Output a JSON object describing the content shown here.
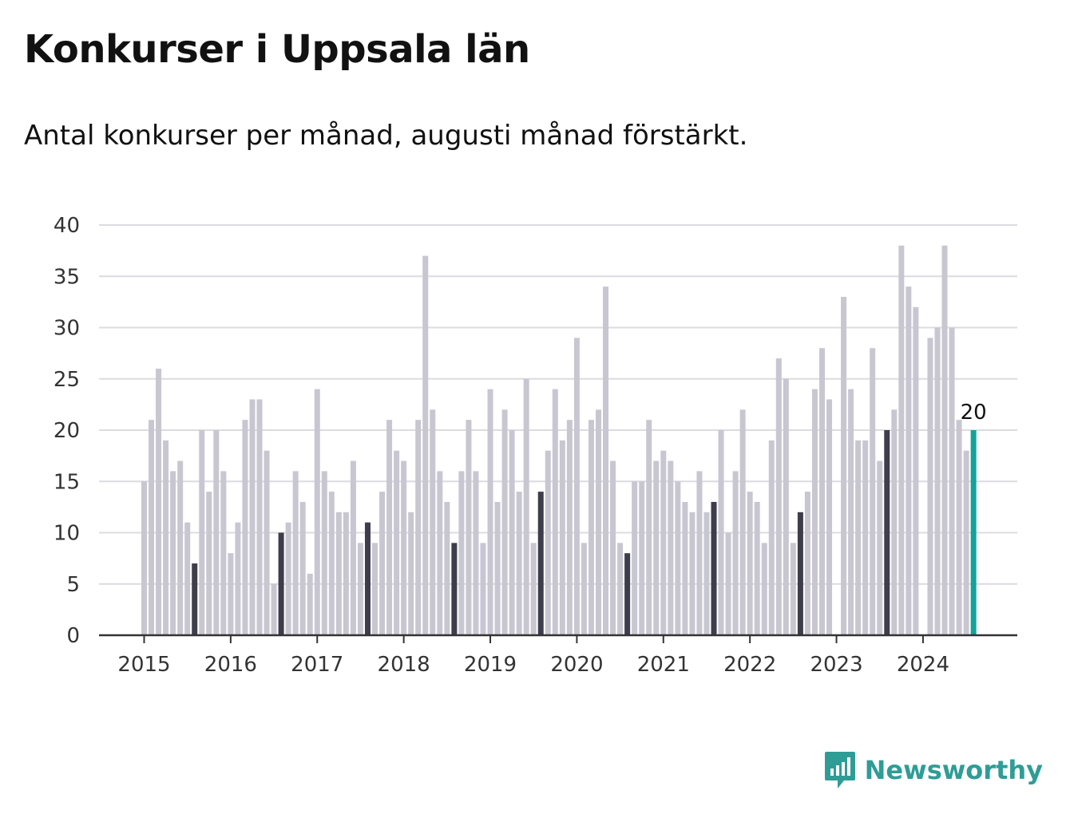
{
  "header": {
    "title": "Konkurser i Uppsala län",
    "subtitle": "Antal konkurser per månad, augusti månad förstärkt."
  },
  "brand": {
    "name": "Newsworthy",
    "icon": "bar-chart-speech-icon",
    "color": "#2e9d96"
  },
  "colors": {
    "bar": "#c8c7d1",
    "highlight": "#3e3d4b",
    "latest": "#12a39a",
    "grid": "#dcdce0",
    "axis": "#333333"
  },
  "chart_data": {
    "type": "bar",
    "title": "Konkurser i Uppsala län",
    "subtitle": "Antal konkurser per månad, augusti månad förstärkt.",
    "xlabel": "",
    "ylabel": "",
    "ylim": [
      0,
      40
    ],
    "yticks": [
      0,
      5,
      10,
      15,
      20,
      25,
      30,
      35,
      40
    ],
    "xticks": [
      "2015",
      "2016",
      "2017",
      "2018",
      "2019",
      "2020",
      "2021",
      "2022",
      "2023",
      "2024"
    ],
    "start": "2015-01",
    "highlight_month": "augusti",
    "latest_label": "20",
    "grid": true,
    "values": [
      15,
      21,
      26,
      19,
      16,
      17,
      11,
      7,
      20,
      14,
      20,
      16,
      8,
      11,
      21,
      23,
      23,
      18,
      5,
      10,
      11,
      16,
      13,
      6,
      24,
      16,
      14,
      12,
      12,
      17,
      9,
      11,
      9,
      14,
      21,
      18,
      17,
      12,
      21,
      37,
      22,
      16,
      13,
      9,
      16,
      21,
      16,
      9,
      24,
      13,
      22,
      20,
      14,
      25,
      9,
      14,
      18,
      24,
      19,
      21,
      29,
      9,
      21,
      22,
      34,
      17,
      9,
      8,
      15,
      15,
      21,
      17,
      18,
      17,
      15,
      13,
      12,
      16,
      12,
      13,
      20,
      10,
      16,
      22,
      14,
      13,
      9,
      19,
      27,
      25,
      9,
      12,
      14,
      24,
      28,
      23,
      0,
      33,
      24,
      19,
      19,
      28,
      17,
      20,
      22,
      38,
      34,
      32,
      0,
      29,
      30,
      38,
      30,
      21,
      18,
      20
    ]
  }
}
